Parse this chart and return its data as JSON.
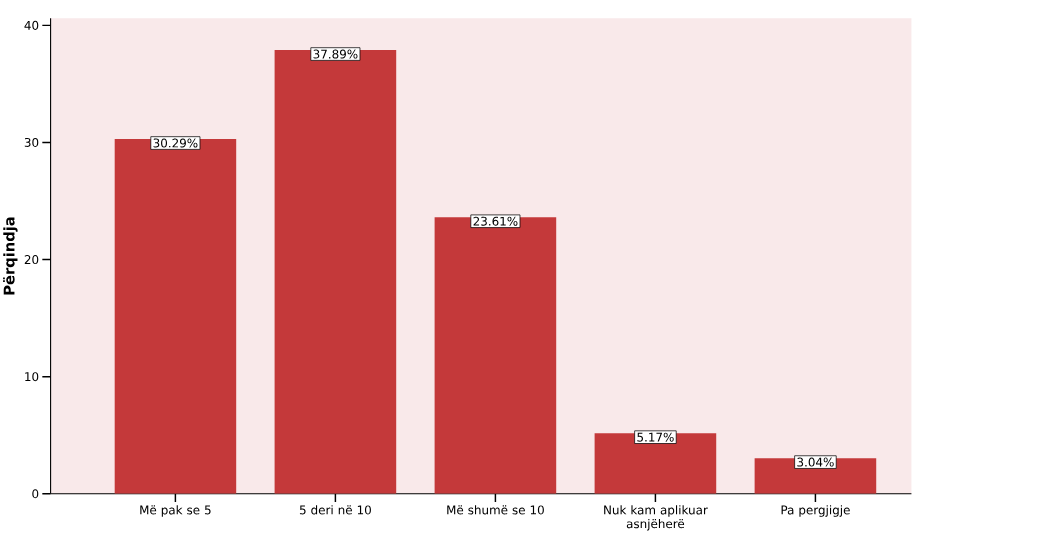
{
  "chart_data": {
    "type": "bar",
    "ylabel": "Përqindja",
    "categories": [
      "Më pak se 5",
      "5 deri në 10",
      "Më shumë se 10",
      "Nuk kam aplikuar asnjëherë",
      "Pa pergjigje"
    ],
    "values": [
      30.29,
      37.89,
      23.61,
      5.17,
      3.04
    ],
    "value_labels": [
      "30.29%",
      "37.89%",
      "23.61%",
      "5.17%",
      "3.04%"
    ],
    "color": "#c4393a",
    "ylim": [
      0,
      40.6
    ],
    "yticks": [
      0,
      10,
      20,
      30,
      40
    ]
  }
}
